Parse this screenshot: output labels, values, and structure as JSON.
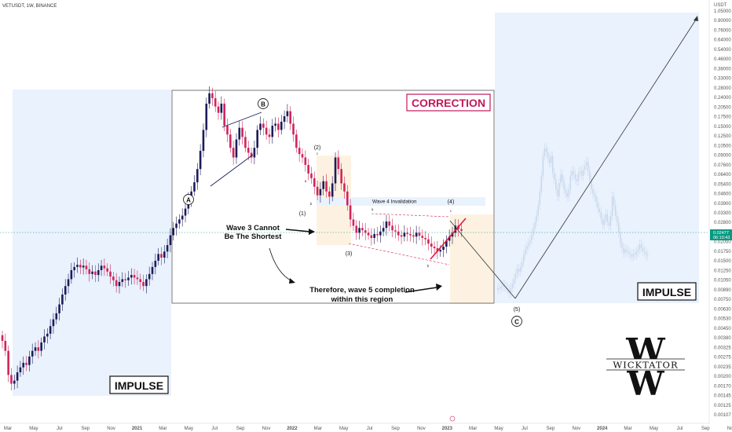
{
  "header": {
    "symbol_line": "VETUSDT, 1W, BINANCE"
  },
  "price_axis": {
    "currency": "USDT",
    "ticks": [
      "1.05000",
      "0.90000",
      "0.76000",
      "0.64000",
      "0.54000",
      "0.46000",
      "0.38000",
      "0.33000",
      "0.28000",
      "0.24000",
      "0.20500",
      "0.17500",
      "0.15000",
      "0.12500",
      "0.10500",
      "0.09000",
      "0.07600",
      "0.06400",
      "0.05400",
      "0.04600",
      "0.03900",
      "0.03300",
      "0.02800",
      "0.02400",
      "0.02050",
      "0.01750",
      "0.01500",
      "0.01250",
      "0.01050",
      "0.00890",
      "0.00750",
      "0.00630",
      "0.00530",
      "0.00450",
      "0.00380",
      "0.00325",
      "0.00275",
      "0.00235",
      "0.00200",
      "0.00170",
      "0.00145",
      "0.00125",
      "0.00107"
    ],
    "last_price": "0.02477",
    "countdown": "06:10:43"
  },
  "time_axis": {
    "labels": [
      "Mar",
      "May",
      "Jul",
      "Sep",
      "Nov",
      "2021",
      "Mar",
      "May",
      "Jul",
      "Sep",
      "Nov",
      "2022",
      "Mar",
      "May",
      "Jul",
      "Sep",
      "Nov",
      "2023",
      "Mar",
      "May",
      "Jul",
      "Sep",
      "Nov",
      "2024",
      "Mar",
      "May",
      "Jul",
      "Sep",
      "Nov"
    ]
  },
  "annotations": {
    "correction_label": "CORRECTION",
    "impulse_left": "IMPULSE",
    "impulse_right": "IMPULSE",
    "wave3_text": [
      "Wave 3 Cannot",
      "Be The Shortest"
    ],
    "wave5_text": [
      "Therefore, wave 5 completion",
      "within this region"
    ],
    "wave4_invalidation": "Wave 4 Invalidation",
    "wave_A": "A",
    "wave_B": "B",
    "wave_C": "C",
    "wave_1": "(1)",
    "wave_2": "(2)",
    "wave_3": "(3)",
    "wave_4": "(4)",
    "wave_5": "(5)",
    "sub_a1": "a",
    "sub_b1": "b",
    "sub_c1": "c",
    "sub_a2": "a",
    "sub_b2": "b",
    "sub_c2": "c"
  },
  "logo": {
    "text": "WICKTATOR"
  },
  "colors": {
    "up": "#089981",
    "down": "#f23645",
    "candle_up": "#1c1c5a",
    "candle_down": "#d1245b",
    "correction": "#c2185b",
    "box_blue": "#e9f2fd",
    "box_orange": "#fdf2e1",
    "ghost": "#c7d6ea"
  },
  "chart_data": {
    "type": "candlestick",
    "scale": "log",
    "ylim": [
      0.00107,
      1.05
    ],
    "series": [
      {
        "name": "VETUSDT 1W",
        "close": [
          0.0039,
          0.0033,
          0.0022,
          0.0019,
          0.002,
          0.0023,
          0.0025,
          0.0027,
          0.0026,
          0.003,
          0.0033,
          0.0035,
          0.0033,
          0.0038,
          0.0042,
          0.0044,
          0.005,
          0.0056,
          0.0062,
          0.0072,
          0.0085,
          0.0098,
          0.011,
          0.0128,
          0.0135,
          0.014,
          0.0134,
          0.0138,
          0.013,
          0.012,
          0.0125,
          0.0118,
          0.0128,
          0.0138,
          0.0132,
          0.0125,
          0.0115,
          0.0108,
          0.0098,
          0.0105,
          0.011,
          0.0108,
          0.0113,
          0.0118,
          0.0113,
          0.011,
          0.0105,
          0.0098,
          0.011,
          0.012,
          0.0135,
          0.015,
          0.0168,
          0.0158,
          0.0175,
          0.0195,
          0.023,
          0.026,
          0.028,
          0.03,
          0.032,
          0.036,
          0.042,
          0.048,
          0.056,
          0.07,
          0.095,
          0.135,
          0.21,
          0.25,
          0.23,
          0.2,
          0.18,
          0.21,
          0.145,
          0.125,
          0.1,
          0.085,
          0.115,
          0.14,
          0.12,
          0.1,
          0.092,
          0.085,
          0.1,
          0.135,
          0.15,
          0.14,
          0.125,
          0.12,
          0.145,
          0.15,
          0.135,
          0.155,
          0.17,
          0.185,
          0.15,
          0.125,
          0.1,
          0.09,
          0.085,
          0.075,
          0.065,
          0.06,
          0.052,
          0.045,
          0.05,
          0.057,
          0.048,
          0.044,
          0.055,
          0.085,
          0.07,
          0.055,
          0.048,
          0.038,
          0.03,
          0.027,
          0.024,
          0.026,
          0.025,
          0.024,
          0.023,
          0.022,
          0.0235,
          0.023,
          0.0245,
          0.026,
          0.029,
          0.027,
          0.025,
          0.0245,
          0.023,
          0.0225,
          0.024,
          0.0235,
          0.023,
          0.0225,
          0.024,
          0.0228,
          0.022,
          0.0215,
          0.02,
          0.019,
          0.0185,
          0.0175,
          0.018,
          0.019,
          0.021,
          0.0225,
          0.024,
          0.027,
          0.0255,
          0.0248
        ]
      }
    ]
  }
}
